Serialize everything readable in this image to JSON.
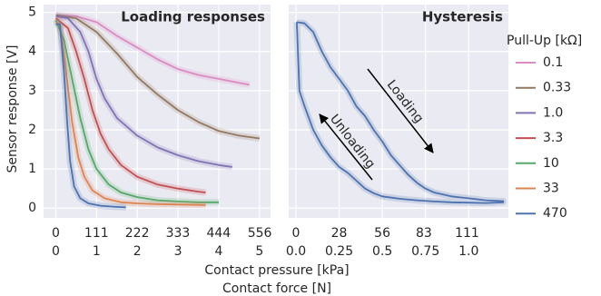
{
  "chart_data": [
    {
      "type": "line",
      "title": "Loading responses",
      "ylabel": "Sensor response [V]",
      "xlabel": "Contact force [N]",
      "x2label": "Contact pressure [kPa]",
      "legend_title": "Pull-Up [kΩ]",
      "xlim": [
        -0.3,
        5.27
      ],
      "xticks": [
        0,
        1,
        2,
        3,
        4,
        5
      ],
      "x2lim": [
        -33.3,
        585.5
      ],
      "x2ticks": [
        0,
        111,
        222,
        333,
        444,
        556
      ],
      "ylim": [
        -0.25,
        5.2
      ],
      "yticks": [
        0,
        1,
        2,
        3,
        4,
        5
      ],
      "grid": true,
      "show_yticklabels": true,
      "series": [
        {
          "name": "0.1",
          "color": "#da8bc3",
          "x": [
            0,
            0.5,
            1,
            1.5,
            2,
            2.5,
            3,
            3.5,
            4,
            4.75
          ],
          "values": [
            4.93,
            4.9,
            4.75,
            4.4,
            4.1,
            3.8,
            3.55,
            3.4,
            3.3,
            3.15
          ]
        },
        {
          "name": "0.33",
          "color": "#937860",
          "x": [
            0,
            0.5,
            1,
            1.5,
            2,
            2.5,
            3,
            3.5,
            4,
            4.5,
            5
          ],
          "values": [
            4.93,
            4.85,
            4.5,
            3.95,
            3.35,
            2.9,
            2.5,
            2.2,
            1.97,
            1.85,
            1.78
          ]
        },
        {
          "name": "1.0",
          "color": "#8172b3",
          "x": [
            0,
            0.3,
            0.6,
            0.8,
            1,
            1.2,
            1.5,
            2,
            2.5,
            3,
            3.5,
            4,
            4.33
          ],
          "values": [
            4.9,
            4.85,
            4.5,
            4,
            3.3,
            2.8,
            2.3,
            1.85,
            1.55,
            1.35,
            1.2,
            1.1,
            1.05
          ]
        },
        {
          "name": "3.3",
          "color": "#c44e52",
          "x": [
            0,
            0.3,
            0.5,
            0.7,
            0.9,
            1.1,
            1.3,
            1.6,
            2,
            2.5,
            3,
            3.5,
            3.68
          ],
          "values": [
            4.85,
            4.6,
            4,
            3.3,
            2.5,
            1.9,
            1.5,
            1.1,
            0.8,
            0.6,
            0.5,
            0.42,
            0.4
          ]
        },
        {
          "name": "10",
          "color": "#55a868",
          "x": [
            0,
            0.2,
            0.4,
            0.6,
            0.8,
            1,
            1.3,
            1.6,
            2,
            2.5,
            3,
            3.5,
            4
          ],
          "values": [
            4.8,
            4.3,
            3.3,
            2.3,
            1.5,
            1,
            0.6,
            0.4,
            0.28,
            0.2,
            0.17,
            0.15,
            0.15
          ]
        },
        {
          "name": "33",
          "color": "#dd8452",
          "x": [
            0,
            0.1,
            0.25,
            0.4,
            0.55,
            0.7,
            0.9,
            1.2,
            1.6,
            2,
            2.5,
            3,
            3.68
          ],
          "values": [
            4.75,
            4.7,
            3.5,
            2.2,
            1.3,
            0.8,
            0.45,
            0.25,
            0.15,
            0.12,
            0.1,
            0.09,
            0.08
          ]
        },
        {
          "name": "470",
          "color": "#4c72b0",
          "x": [
            0,
            0.1,
            0.2,
            0.28,
            0.35,
            0.45,
            0.6,
            0.8,
            1.1,
            1.5,
            1.72
          ],
          "values": [
            4.7,
            4.7,
            3.5,
            2.2,
            1.2,
            0.55,
            0.25,
            0.12,
            0.06,
            0.03,
            0.02
          ]
        }
      ]
    },
    {
      "type": "line",
      "title": "Hysteresis",
      "xlim": [
        -0.042,
        1.23
      ],
      "xticks": [
        {
          "value": 0,
          "label": "0.0"
        },
        0.25,
        0.5,
        0.75,
        {
          "value": 1,
          "label": "1.0"
        }
      ],
      "x2lim": [
        -4.7,
        137.8
      ],
      "x2ticks": [
        0,
        28,
        56,
        83,
        111
      ],
      "ylim": [
        -0.25,
        5.2
      ],
      "yticks": [
        0,
        1,
        2,
        3,
        4,
        5
      ],
      "grid": true,
      "show_yticklabels": false,
      "annotations": [
        {
          "text": "Loading"
        },
        {
          "text": "Unloading"
        }
      ],
      "series": [
        {
          "color": "#4c72b0",
          "x": [
            0.005,
            0.05,
            0.1,
            0.15,
            0.2,
            0.25,
            0.3,
            0.35,
            0.4,
            0.45,
            0.5,
            0.55,
            0.6,
            0.65,
            0.7,
            0.75,
            0.8,
            0.9,
            1,
            1.1,
            1.2,
            1.2,
            1.1,
            1,
            0.9,
            0.8,
            0.7,
            0.6,
            0.5,
            0.45,
            0.4,
            0.35,
            0.3,
            0.25,
            0.2,
            0.15,
            0.1,
            0.05,
            0.02,
            0.005
          ],
          "values": [
            4.75,
            4.72,
            4.5,
            4,
            3.6,
            3.3,
            3,
            2.6,
            2.35,
            2,
            1.7,
            1.35,
            1.1,
            0.85,
            0.65,
            0.5,
            0.4,
            0.3,
            0.25,
            0.2,
            0.18,
            0.15,
            0.13,
            0.14,
            0.15,
            0.17,
            0.2,
            0.24,
            0.3,
            0.38,
            0.5,
            0.7,
            0.9,
            1.05,
            1.3,
            1.6,
            2,
            2.6,
            3,
            4.75
          ]
        }
      ]
    }
  ]
}
